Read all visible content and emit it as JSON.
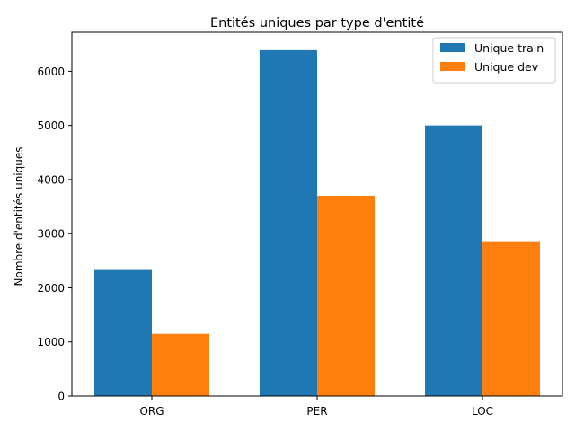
{
  "chart_data": {
    "type": "bar",
    "title": "Entités uniques par type d'entité",
    "xlabel": "",
    "ylabel": "Nombre d'entités uniques",
    "categories": [
      "ORG",
      "PER",
      "LOC"
    ],
    "series": [
      {
        "name": "Unique train",
        "color": "#1f77b4",
        "values": [
          2330,
          6390,
          5000
        ]
      },
      {
        "name": "Unique dev",
        "color": "#ff7f0e",
        "values": [
          1150,
          3700,
          2860
        ]
      }
    ],
    "ylim": [
      0,
      6720
    ],
    "yticks": [
      0,
      1000,
      2000,
      3000,
      4000,
      5000,
      6000
    ],
    "grid": false,
    "legend_position": "top-right"
  }
}
